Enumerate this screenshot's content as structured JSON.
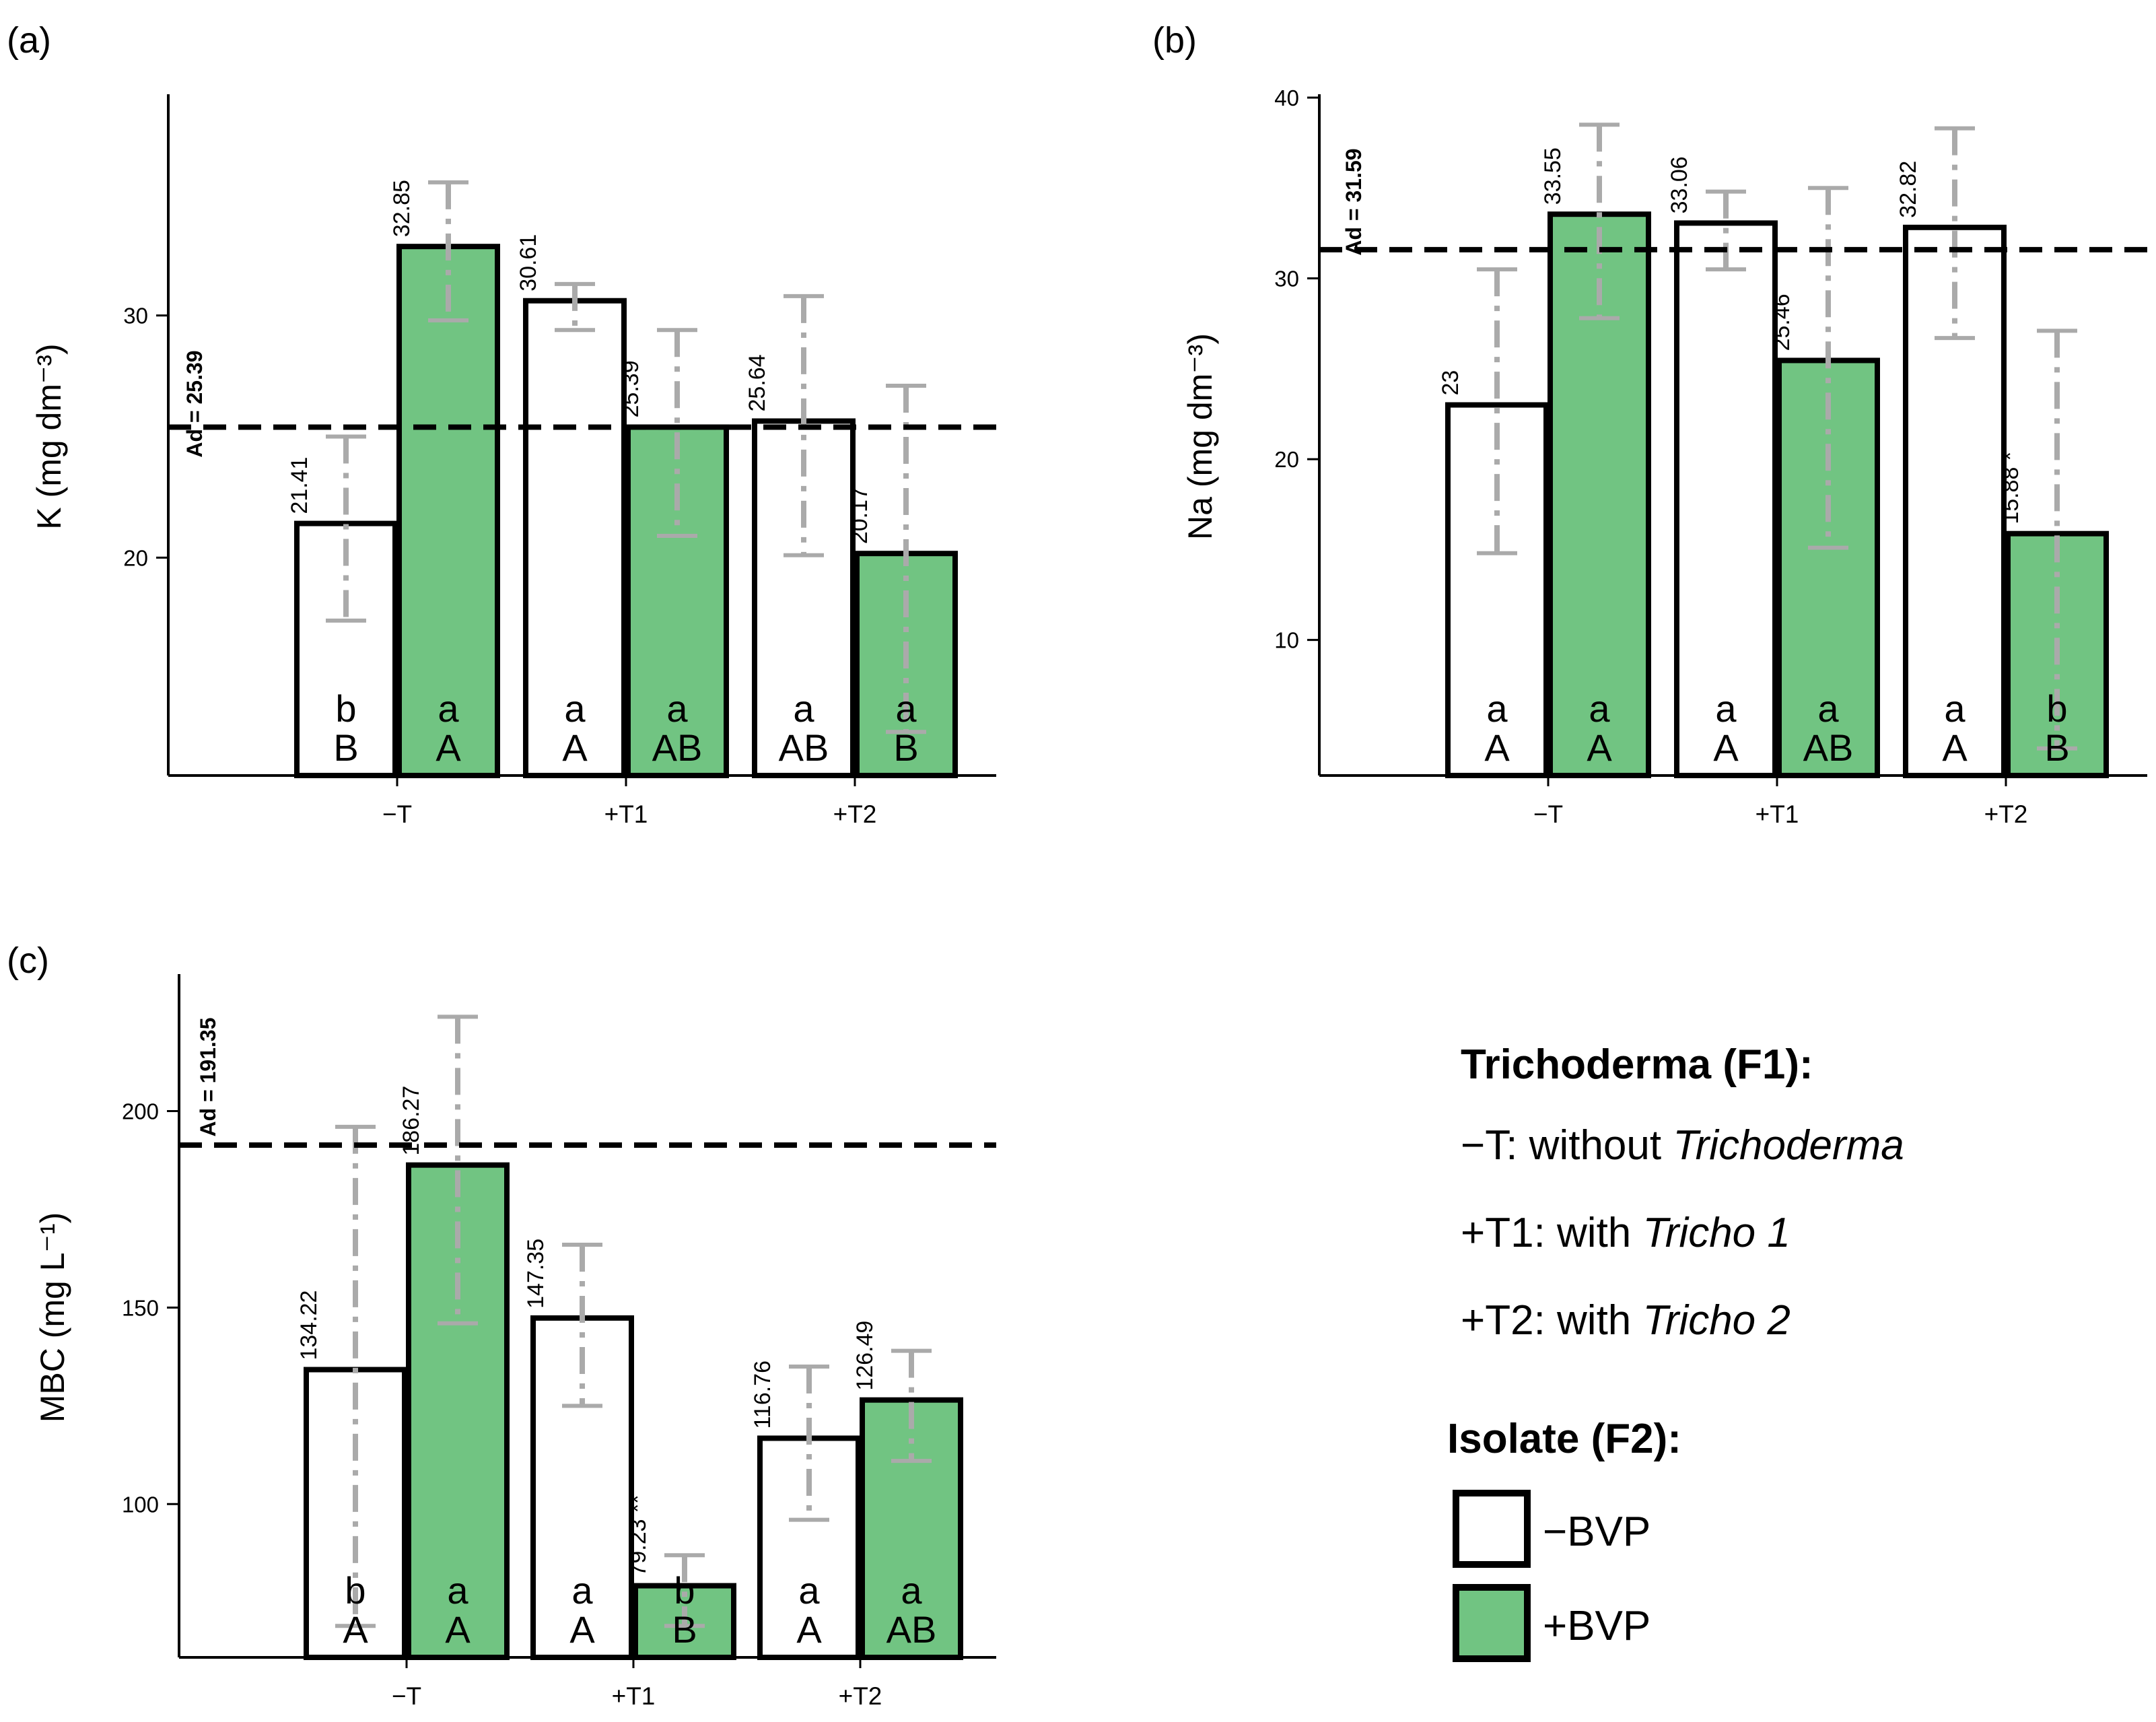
{
  "colors": {
    "bvp_plus": "#71c482",
    "bvp_minus": "#ffffff",
    "outline": "#000000",
    "error": "#aaaaaa"
  },
  "legend": {
    "f1_title": "Trichoderma (F1):",
    "f1_items": [
      {
        "code": "−T",
        "text": "without ",
        "italic": "Trichoderma"
      },
      {
        "code": "+T1",
        "text": "with ",
        "italic": "Tricho 1"
      },
      {
        "code": "+T2",
        "text": "with ",
        "italic": "Tricho 2"
      }
    ],
    "f2_title": "Isolate (F2):",
    "f2_items": [
      {
        "label": "−BVP",
        "color": "#ffffff"
      },
      {
        "label": "+BVP",
        "color": "#71c482"
      }
    ]
  },
  "chart_data": [
    {
      "panel": "(a)",
      "type": "bar",
      "ylabel": "K (mg dm⁻³)",
      "categories": [
        "−T",
        "+T1",
        "+T2"
      ],
      "ylim": [
        11,
        39
      ],
      "yticks": [
        20,
        30
      ],
      "ad_value": 25.39,
      "ad_label": "Ad = 25.39",
      "series": [
        {
          "name": "−BVP",
          "values": [
            21.41,
            30.61,
            25.64
          ],
          "labels": [
            "21.41",
            "30.61",
            "25.64"
          ],
          "err_low": [
            17.4,
            29.4,
            20.1
          ],
          "err_high": [
            25.0,
            31.3,
            30.8
          ],
          "letters_lower": [
            "b",
            "a",
            "a"
          ],
          "letters_upper": [
            "B",
            "A",
            "AB"
          ]
        },
        {
          "name": "+BVP",
          "values": [
            32.85,
            25.39,
            20.17
          ],
          "labels": [
            "32.85",
            "25.39",
            "20.17"
          ],
          "err_low": [
            29.8,
            20.9,
            12.8
          ],
          "err_high": [
            35.5,
            29.4,
            27.1
          ],
          "letters_lower": [
            "a",
            "a",
            "a"
          ],
          "letters_upper": [
            "A",
            "AB",
            "B"
          ]
        }
      ]
    },
    {
      "panel": "(b)",
      "type": "bar",
      "ylabel": "Na (mg dm⁻³)",
      "categories": [
        "−T",
        "+T1",
        "+T2"
      ],
      "ylim": [
        2.5,
        40
      ],
      "yticks": [
        10,
        20,
        30,
        40
      ],
      "ad_value": 31.59,
      "ad_label": "Ad = 31.59",
      "series": [
        {
          "name": "−BVP",
          "values": [
            23,
            33.06,
            32.82
          ],
          "labels": [
            "23",
            "33.06",
            "32.82"
          ],
          "err_low": [
            14.8,
            30.5,
            26.7
          ],
          "err_high": [
            30.5,
            34.8,
            38.3
          ],
          "letters_lower": [
            "a",
            "a",
            "a"
          ],
          "letters_upper": [
            "A",
            "A",
            "A"
          ]
        },
        {
          "name": "+BVP",
          "values": [
            33.55,
            25.46,
            15.88
          ],
          "labels": [
            "33.55",
            "25.46",
            "15.88 *"
          ],
          "err_low": [
            27.8,
            15.1,
            4.0
          ],
          "err_high": [
            38.5,
            35.0,
            27.1
          ],
          "letters_lower": [
            "a",
            "a",
            "b"
          ],
          "letters_upper": [
            "A",
            "AB",
            "B"
          ]
        }
      ]
    },
    {
      "panel": "(c)",
      "type": "bar",
      "ylabel": "MBC (mg L⁻¹)",
      "categories": [
        "−T",
        "+T1",
        "+T2"
      ],
      "ylim": [
        61,
        234
      ],
      "yticks": [
        100,
        150,
        200
      ],
      "ad_value": 191.35,
      "ad_label": "Ad = 191.35",
      "series": [
        {
          "name": "−BVP",
          "values": [
            134.22,
            147.35,
            116.76
          ],
          "labels": [
            "134.22",
            "147.35",
            "116.76"
          ],
          "err_low": [
            69,
            125,
            96
          ],
          "err_high": [
            196,
            166,
            135
          ],
          "letters_lower": [
            "b",
            "a",
            "a"
          ],
          "letters_upper": [
            "A",
            "A",
            "A"
          ]
        },
        {
          "name": "+BVP",
          "values": [
            186.27,
            79.23,
            126.49
          ],
          "labels": [
            "186.27",
            "79.23 **",
            "126.49"
          ],
          "err_low": [
            146,
            69,
            111
          ],
          "err_high": [
            224,
            87,
            139
          ],
          "letters_lower": [
            "a",
            "b",
            "a"
          ],
          "letters_upper": [
            "A",
            "B",
            "AB"
          ]
        }
      ]
    }
  ]
}
